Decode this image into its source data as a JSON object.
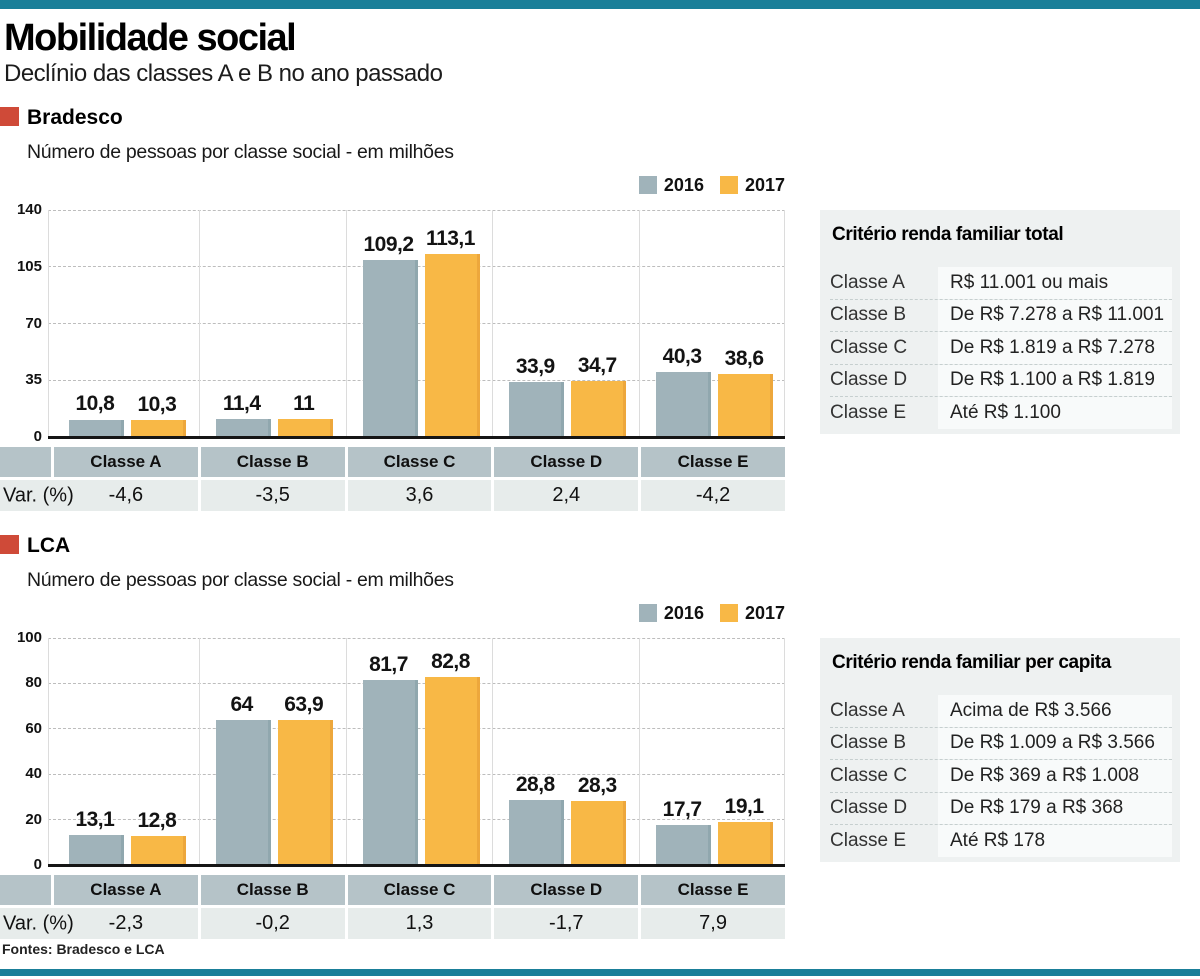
{
  "page": {
    "title": "Mobilidade social",
    "subtitle": "Declínio das classes A e B no ano passado",
    "source": "Fontes: Bradesco e LCA"
  },
  "colors": {
    "accent_teal": "#1a7f99",
    "marker_red": "#cf4a38",
    "bar_2016": "#a0b3ba",
    "bar_2017": "#f8b846",
    "class_row_bg": "#b5c3c8",
    "var_row_bg": "#e7eceb",
    "criteria_bg": "#eef1f1",
    "criteria_value_bg": "#f8fafa"
  },
  "legend": [
    "2016",
    "2017"
  ],
  "sections": [
    {
      "name": "Bradesco",
      "chart_subtitle": "Número de pessoas por classe social - em milhões",
      "var_label": "Var. (%)",
      "criteria": {
        "title": "Critério renda familiar total",
        "rows": [
          {
            "label": "Classe A",
            "value": "R$ 11.001 ou mais"
          },
          {
            "label": "Classe B",
            "value": "De R$ 7.278 a R$ 11.001"
          },
          {
            "label": "Classe C",
            "value": "De R$ 1.819 a R$ 7.278"
          },
          {
            "label": "Classe D",
            "value": "De R$ 1.100 a R$ 1.819"
          },
          {
            "label": "Classe E",
            "value": "Até R$ 1.100"
          }
        ]
      }
    },
    {
      "name": "LCA",
      "chart_subtitle": "Número de pessoas por classe social - em milhões",
      "var_label": "Var. (%)",
      "criteria": {
        "title": "Critério renda familiar per capita",
        "rows": [
          {
            "label": "Classe A",
            "value": "Acima de R$ 3.566"
          },
          {
            "label": "Classe B",
            "value": "De R$ 1.009 a R$ 3.566"
          },
          {
            "label": "Classe C",
            "value": "De R$ 369 a R$ 1.008"
          },
          {
            "label": "Classe D",
            "value": "De R$ 179 a R$ 368"
          },
          {
            "label": "Classe E",
            "value": "Até R$ 178"
          }
        ]
      }
    }
  ],
  "chart_data": [
    {
      "type": "bar",
      "title": "Bradesco",
      "subtitle": "Número de pessoas por classe social - em milhões",
      "categories": [
        "Classe A",
        "Classe B",
        "Classe C",
        "Classe D",
        "Classe E"
      ],
      "series": [
        {
          "name": "2016",
          "values": [
            10.8,
            11.4,
            109.2,
            33.9,
            40.3
          ]
        },
        {
          "name": "2017",
          "values": [
            10.3,
            11,
            113.1,
            34.7,
            38.6
          ]
        }
      ],
      "var_pct": [
        -4.6,
        -3.5,
        3.6,
        2.4,
        -4.2
      ],
      "ylim": [
        0,
        140
      ],
      "yticks": [
        0,
        35,
        70,
        105,
        140
      ],
      "grid": "horizontal-dashed",
      "legend_position": "top-right"
    },
    {
      "type": "bar",
      "title": "LCA",
      "subtitle": "Número de pessoas por classe social - em milhões",
      "categories": [
        "Classe A",
        "Classe B",
        "Classe C",
        "Classe D",
        "Classe E"
      ],
      "series": [
        {
          "name": "2016",
          "values": [
            13.1,
            64,
            81.7,
            28.8,
            17.7
          ]
        },
        {
          "name": "2017",
          "values": [
            12.8,
            63.9,
            82.8,
            28.3,
            19.1
          ]
        }
      ],
      "var_pct": [
        -2.3,
        -0.2,
        1.3,
        -1.7,
        7.9
      ],
      "ylim": [
        0,
        100
      ],
      "yticks": [
        0,
        20,
        40,
        60,
        80,
        100
      ],
      "grid": "horizontal-dashed",
      "legend_position": "top-right"
    }
  ]
}
